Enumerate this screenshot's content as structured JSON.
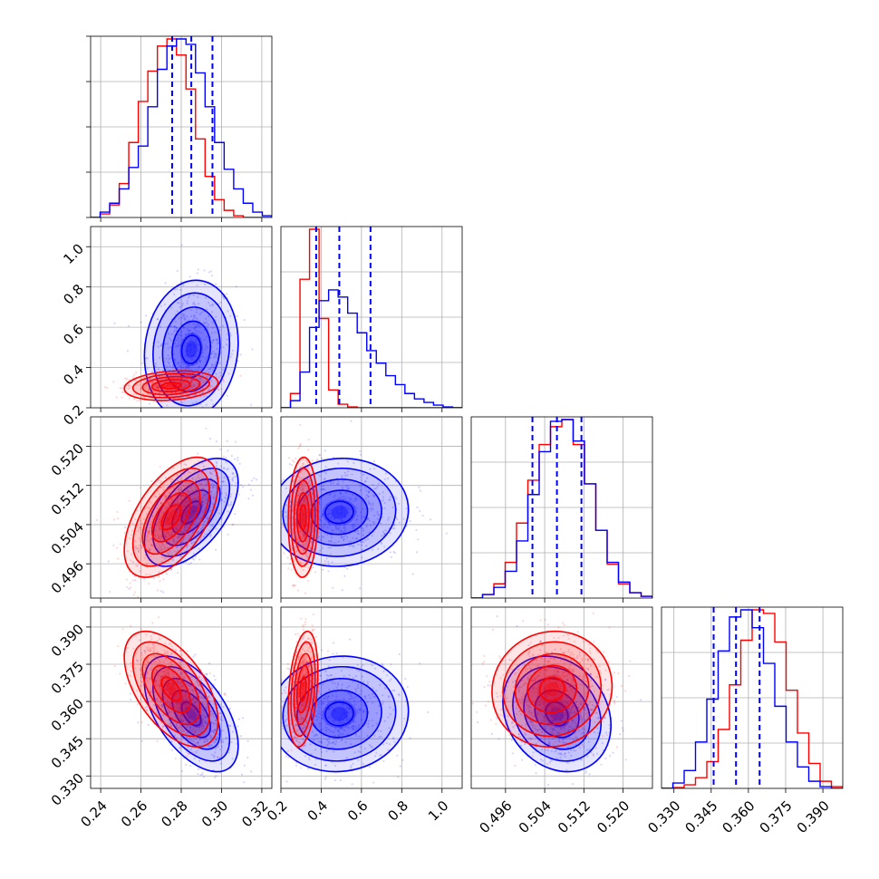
{
  "chart_data": {
    "type": "corner",
    "parameters": [
      {
        "range": [
          0.235,
          0.325
        ],
        "ticks": [
          0.24,
          0.26,
          0.28,
          0.3,
          0.32
        ],
        "tick_labels": [
          "0.24",
          "0.26",
          "0.28",
          "0.30",
          "0.32"
        ],
        "hist_ticks": 4
      },
      {
        "range": [
          0.2,
          1.1
        ],
        "ticks": [
          0.2,
          0.4,
          0.6,
          0.8,
          1.0
        ],
        "tick_labels": [
          "0.2",
          "0.4",
          "0.6",
          "0.8",
          "1.0"
        ],
        "hist_ticks": 4
      },
      {
        "range": [
          0.489,
          0.526
        ],
        "ticks": [
          0.496,
          0.504,
          0.512,
          0.52
        ],
        "tick_labels": [
          "0.496",
          "0.504",
          "0.512",
          "0.520"
        ],
        "hist_ticks": 4
      },
      {
        "range": [
          0.325,
          0.398
        ],
        "ticks": [
          0.33,
          0.345,
          0.36,
          0.375,
          0.39
        ],
        "tick_labels": [
          "0.330",
          "0.345",
          "0.360",
          "0.375",
          "0.390"
        ],
        "hist_ticks": 4
      }
    ],
    "grid": true,
    "series": [
      {
        "color": "#0000ff",
        "means": [
          0.285,
          0.49,
          0.5065,
          0.355
        ],
        "sds": [
          0.0095,
          0.14,
          0.0045,
          0.0095
        ],
        "quantiles": [
          [
            0.2755,
            0.285,
            0.2955
          ],
          [
            0.375,
            0.49,
            0.645
          ],
          [
            0.5015,
            0.5065,
            0.5115
          ],
          [
            0.346,
            0.355,
            0.3645
          ]
        ],
        "correlations": {
          "1-0": 0.1,
          "2-0": 0.55,
          "2-1": 0.05,
          "3-0": -0.55,
          "3-1": 0.05,
          "3-2": -0.2
        },
        "hist_values": [
          [
            0.0,
            0.3,
            0.8,
            1.6,
            2.8,
            4.0,
            6.2,
            8.3,
            9.6,
            10.0,
            9.7,
            8.1,
            6.2,
            4.2,
            2.7,
            1.6,
            0.8,
            0.3,
            0.1
          ],
          [
            0.0,
            0.4,
            2.0,
            4.5,
            6.0,
            6.6,
            6.2,
            5.3,
            4.2,
            3.2,
            2.5,
            1.8,
            1.3,
            0.8,
            0.5,
            0.3,
            0.15,
            0.05,
            0.0
          ],
          [
            0.0,
            0.2,
            0.6,
            1.5,
            3.2,
            5.8,
            8.2,
            9.9,
            10.0,
            8.8,
            6.4,
            3.8,
            2.0,
            0.9,
            0.3,
            0.1
          ],
          [
            0.0,
            0.3,
            1.0,
            2.6,
            5.0,
            7.7,
            9.6,
            10.0,
            9.0,
            7.0,
            4.6,
            2.6,
            1.2,
            0.4,
            0.1,
            0.0
          ]
        ]
      },
      {
        "color": "#ff0000",
        "means": [
          0.275,
          0.31,
          0.5055,
          0.365
        ],
        "sds": [
          0.0095,
          0.03,
          0.005,
          0.0095
        ],
        "correlations": {
          "1-0": 0.2,
          "2-0": 0.55,
          "2-1": 0.05,
          "3-0": -0.55,
          "3-1": 0.3,
          "3-2": 0.05
        },
        "hist_values": [
          [
            0.0,
            0.2,
            0.7,
            1.9,
            4.2,
            6.5,
            8.2,
            9.6,
            10.0,
            9.1,
            7.2,
            4.4,
            2.3,
            1.0,
            0.4,
            0.1,
            0.0,
            0.0,
            0.0
          ],
          [
            0.0,
            0.8,
            7.2,
            10.0,
            5.0,
            1.0,
            0.2,
            0.05,
            0.0,
            0.0,
            0.0,
            0.0,
            0.0,
            0.0,
            0.0,
            0.0,
            0.0,
            0.0,
            0.0
          ],
          [
            0.0,
            0.2,
            0.8,
            2.0,
            4.2,
            6.6,
            8.6,
            9.6,
            10.0,
            8.6,
            6.4,
            3.8,
            1.9,
            0.8,
            0.3,
            0.1
          ],
          [
            0.0,
            0.05,
            0.2,
            0.6,
            1.5,
            3.3,
            5.8,
            8.3,
            10.0,
            9.8,
            8.2,
            5.5,
            3.1,
            1.4,
            0.4,
            0.1
          ]
        ]
      }
    ]
  }
}
